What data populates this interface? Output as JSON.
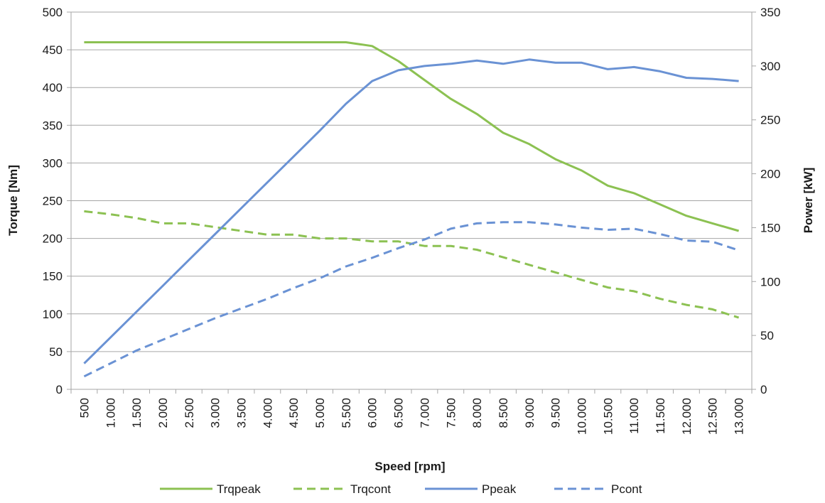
{
  "chart_data": {
    "type": "line",
    "xlabel": "Speed [rpm]",
    "ylabel_left": "Torque [Nm]",
    "ylabel_right": "Power [kW]",
    "categories": [
      "500",
      "1.000",
      "1.500",
      "2.000",
      "2.500",
      "3.000",
      "3.500",
      "4.000",
      "4.500",
      "5.000",
      "5.500",
      "6.000",
      "6.500",
      "7.000",
      "7.500",
      "8.000",
      "8.500",
      "9.000",
      "9.500",
      "10.000",
      "10.500",
      "11.000",
      "11.500",
      "12.000",
      "12.500",
      "13.000"
    ],
    "ylim_left": [
      0,
      500
    ],
    "yticks_left": [
      0,
      50,
      100,
      150,
      200,
      250,
      300,
      350,
      400,
      450,
      500
    ],
    "ylim_right": [
      0,
      350
    ],
    "yticks_right": [
      0,
      50,
      100,
      150,
      200,
      250,
      300,
      350
    ],
    "grid": true,
    "legend_position": "bottom",
    "series": [
      {
        "name": "Trqpeak",
        "axis": "left",
        "style": "solid",
        "color": "#8cc152",
        "values": [
          460,
          460,
          460,
          460,
          460,
          460,
          460,
          460,
          460,
          460,
          460,
          455,
          435,
          410,
          385,
          365,
          340,
          325,
          305,
          290,
          270,
          260,
          245,
          230,
          220,
          210
        ]
      },
      {
        "name": "Trqcont",
        "axis": "left",
        "style": "dashed",
        "color": "#8cc152",
        "values": [
          236,
          232,
          227,
          220,
          220,
          215,
          210,
          205,
          205,
          200,
          200,
          196,
          196,
          190,
          190,
          185,
          175,
          165,
          155,
          145,
          135,
          130,
          120,
          112,
          106,
          95
        ]
      },
      {
        "name": "Ppeak",
        "axis": "right",
        "style": "solid",
        "color": "#6a92d4",
        "values": [
          24,
          48,
          72,
          96,
          120,
          144,
          168,
          192,
          216,
          240,
          265,
          286,
          296,
          300,
          302,
          305,
          302,
          306,
          303,
          303,
          297,
          299,
          295,
          289,
          288,
          286
        ]
      },
      {
        "name": "Pcont",
        "axis": "right",
        "style": "dashed",
        "color": "#6a92d4",
        "values": [
          12,
          24,
          36,
          46,
          56,
          66,
          75,
          84,
          94,
          103,
          114,
          122,
          131,
          139,
          149,
          154,
          155,
          155,
          153,
          150,
          148,
          149,
          144,
          138,
          137,
          129
        ]
      }
    ]
  }
}
